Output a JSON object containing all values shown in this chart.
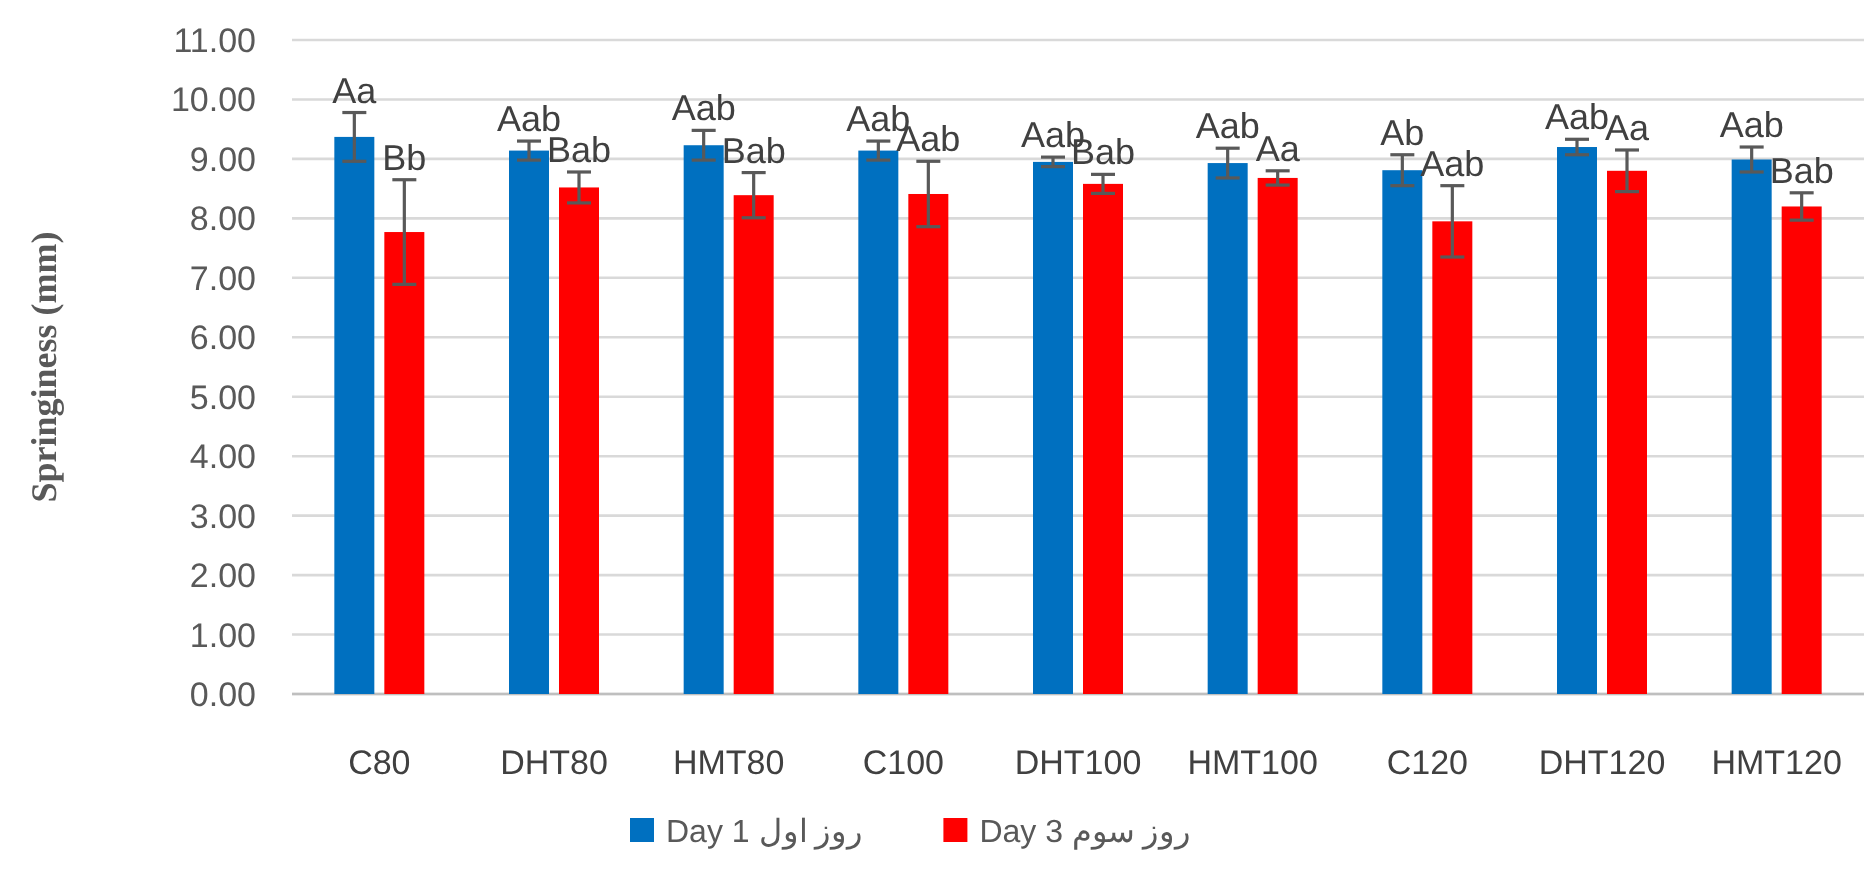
{
  "chart_data": {
    "type": "bar",
    "ylabel": "Springiness (mm)",
    "categories": [
      "C80",
      "DHT80",
      "HMT80",
      "C100",
      "DHT100",
      "HMT100",
      "C120",
      "DHT120",
      "HMT120"
    ],
    "series": [
      {
        "name": "Day 1 روز اول",
        "color": "#0070c0",
        "values": [
          9.37,
          9.14,
          9.23,
          9.14,
          8.95,
          8.93,
          8.81,
          9.2,
          8.99
        ],
        "errors": [
          0.41,
          0.16,
          0.25,
          0.16,
          0.08,
          0.25,
          0.26,
          0.13,
          0.21
        ],
        "value_labels": [
          "Aa",
          "Aab",
          "Aab",
          "Aab",
          "Aab",
          "Aab",
          "Ab",
          "Aab",
          "Aab"
        ]
      },
      {
        "name": "Day 3 روز سوم",
        "color": "#ff0000",
        "values": [
          7.77,
          8.52,
          8.39,
          8.41,
          8.58,
          8.68,
          7.95,
          8.8,
          8.2
        ],
        "errors": [
          0.88,
          0.26,
          0.38,
          0.55,
          0.16,
          0.12,
          0.6,
          0.35,
          0.23
        ],
        "value_labels": [
          "Bb",
          "Bab",
          "Bab",
          "Aab",
          "Bab",
          "Aa",
          "Aab",
          "Aa",
          "Bab"
        ]
      }
    ],
    "ylim": [
      0,
      11
    ],
    "yticks": [
      {
        "value": 0,
        "label": "0.00"
      },
      {
        "value": 1,
        "label": "1.00"
      },
      {
        "value": 2,
        "label": "2.00"
      },
      {
        "value": 3,
        "label": "3.00"
      },
      {
        "value": 4,
        "label": "4.00"
      },
      {
        "value": 5,
        "label": "5.00"
      },
      {
        "value": 6,
        "label": "6.00"
      },
      {
        "value": 7,
        "label": "7.00"
      },
      {
        "value": 8,
        "label": "8.00"
      },
      {
        "value": 9,
        "label": "9.00"
      },
      {
        "value": 10,
        "label": "10.00"
      },
      {
        "value": 11,
        "label": "11.00"
      }
    ],
    "grid": "y",
    "legend": "bottom"
  }
}
